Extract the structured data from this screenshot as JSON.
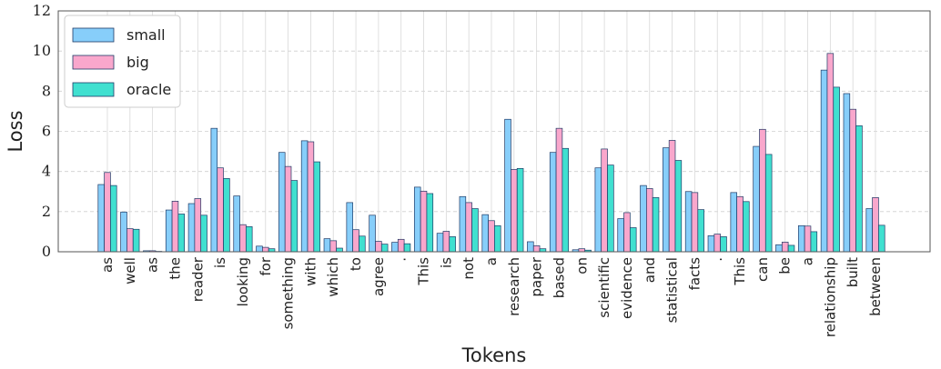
{
  "chart_data": {
    "type": "bar",
    "xlabel": "Tokens",
    "ylabel": "Loss",
    "ylim": [
      0,
      12
    ],
    "yticks": [
      0,
      2,
      4,
      6,
      8,
      10,
      12
    ],
    "grid": true,
    "legend_position": "top-left",
    "categories": [
      "as",
      "well",
      "as",
      "the",
      "reader",
      "is",
      "looking",
      "for",
      "something",
      "with",
      "which",
      "to",
      "agree",
      ".",
      "This",
      "is",
      "not",
      "a",
      "research",
      "paper",
      "based",
      "on",
      "scientific",
      "evidence",
      "and",
      "statistical",
      "facts",
      ".",
      "This",
      "can",
      "be",
      "a",
      "relationship",
      "built",
      "between"
    ],
    "series": [
      {
        "name": "small",
        "color": "#87cefa",
        "values": [
          3.35,
          1.98,
          0.05,
          2.08,
          2.4,
          6.15,
          2.78,
          0.28,
          4.95,
          5.53,
          0.65,
          2.45,
          1.82,
          0.47,
          3.22,
          0.92,
          2.75,
          1.85,
          6.6,
          0.5,
          4.95,
          0.1,
          4.18,
          1.65,
          3.3,
          5.18,
          3.0,
          0.8,
          2.95,
          5.25,
          0.35,
          1.3,
          9.05,
          7.88,
          2.15
        ]
      },
      {
        "name": "big",
        "color": "#f9a7cc",
        "values": [
          3.95,
          1.15,
          0.05,
          2.52,
          2.65,
          4.18,
          1.35,
          0.22,
          4.25,
          5.48,
          0.55,
          1.1,
          0.52,
          0.62,
          3.02,
          1.02,
          2.45,
          1.55,
          4.1,
          0.3,
          6.15,
          0.15,
          5.12,
          1.95,
          3.15,
          5.55,
          2.95,
          0.88,
          2.75,
          6.1,
          0.48,
          1.28,
          9.88,
          7.1,
          2.7
        ]
      },
      {
        "name": "oracle",
        "color": "#40e0d0",
        "values": [
          3.3,
          1.12,
          0.02,
          1.88,
          1.82,
          3.65,
          1.25,
          0.15,
          3.55,
          4.48,
          0.18,
          0.78,
          0.38,
          0.4,
          2.9,
          0.75,
          2.15,
          1.3,
          4.15,
          0.15,
          5.15,
          0.08,
          4.32,
          1.2,
          2.7,
          4.55,
          2.1,
          0.75,
          2.5,
          4.85,
          0.32,
          1.0,
          8.2,
          6.28,
          1.32
        ]
      }
    ]
  }
}
